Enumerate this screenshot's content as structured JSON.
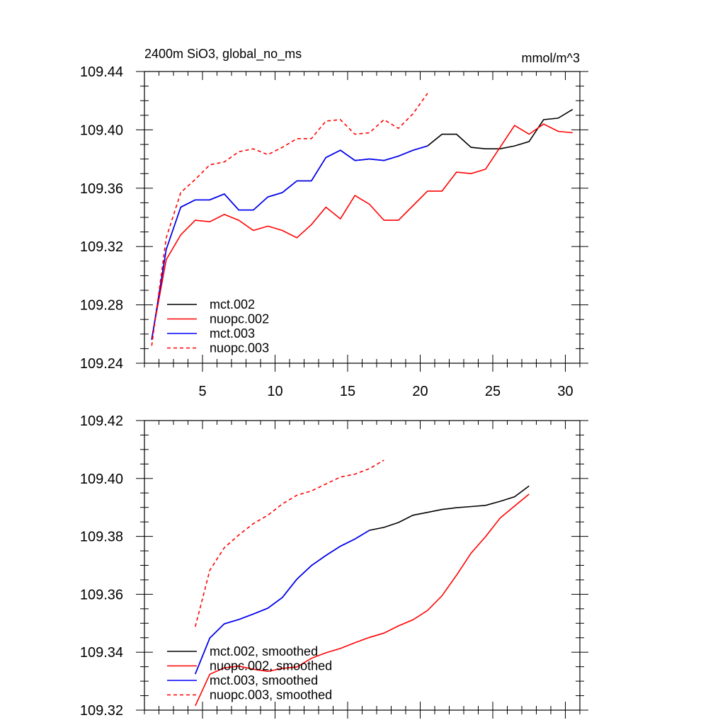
{
  "chart_data": [
    {
      "type": "line",
      "title": "2400m SiO3, global_no_ms",
      "units": "mmol/m^3",
      "xlabel": "",
      "ylabel": "",
      "xlim": [
        1,
        31
      ],
      "ylim": [
        109.24,
        109.44
      ],
      "xticks": [
        5,
        10,
        15,
        20,
        25,
        30
      ],
      "yticks": [
        "109.24",
        "109.28",
        "109.32",
        "109.36",
        "109.40",
        "109.44"
      ],
      "legend_position": "bottom-left",
      "series": [
        {
          "name": "mct.002",
          "color": "#000000",
          "dash": "solid",
          "x": [
            1.5,
            2.5,
            3.5,
            4.5,
            5.5,
            6.5,
            7.5,
            8.5,
            9.5,
            10.5,
            11.5,
            12.5,
            13.5,
            14.5,
            15.5,
            16.5,
            17.5,
            18.5,
            19.5,
            20.5,
            21.5,
            22.5,
            23.5,
            24.5,
            25.5,
            26.5,
            27.5,
            28.5,
            29.5,
            30.5
          ],
          "y": [
            109.256,
            109.318,
            109.347,
            109.352,
            109.352,
            109.356,
            109.345,
            109.345,
            109.354,
            109.357,
            109.365,
            109.365,
            109.381,
            109.386,
            109.379,
            109.38,
            109.379,
            109.382,
            109.386,
            109.389,
            109.397,
            109.397,
            109.388,
            109.387,
            109.387,
            109.389,
            109.392,
            109.407,
            109.408,
            109.414
          ]
        },
        {
          "name": "nuopc.002",
          "color": "#ff0000",
          "dash": "solid",
          "x": [
            1.5,
            2.5,
            3.5,
            4.5,
            5.5,
            6.5,
            7.5,
            8.5,
            9.5,
            10.5,
            11.5,
            12.5,
            13.5,
            14.5,
            15.5,
            16.5,
            17.5,
            18.5,
            19.5,
            20.5,
            21.5,
            22.5,
            23.5,
            24.5,
            25.5,
            26.5,
            27.5,
            28.5,
            29.5,
            30.5
          ],
          "y": [
            109.257,
            109.311,
            109.328,
            109.338,
            109.337,
            109.342,
            109.338,
            109.331,
            109.334,
            109.331,
            109.326,
            109.335,
            109.347,
            109.339,
            109.355,
            109.349,
            109.338,
            109.338,
            109.348,
            109.358,
            109.358,
            109.371,
            109.37,
            109.373,
            109.388,
            109.403,
            109.397,
            109.404,
            109.399,
            109.398
          ]
        },
        {
          "name": "mct.003",
          "color": "#0000ff",
          "dash": "solid",
          "x": [
            1.5,
            2.5,
            3.5,
            4.5,
            5.5,
            6.5,
            7.5,
            8.5,
            9.5,
            10.5,
            11.5,
            12.5,
            13.5,
            14.5,
            15.5,
            16.5,
            17.5,
            18.5,
            19.5,
            20.5
          ],
          "y": [
            109.256,
            109.318,
            109.347,
            109.352,
            109.352,
            109.356,
            109.345,
            109.345,
            109.354,
            109.357,
            109.365,
            109.365,
            109.381,
            109.386,
            109.379,
            109.38,
            109.379,
            109.382,
            109.386,
            109.389
          ]
        },
        {
          "name": "nuopc.003",
          "color": "#ff0000",
          "dash": "dashed",
          "x": [
            1.5,
            2.5,
            3.5,
            4.5,
            5.5,
            6.5,
            7.5,
            8.5,
            9.5,
            10.5,
            11.5,
            12.5,
            13.5,
            14.5,
            15.5,
            16.5,
            17.5,
            18.5,
            19.5,
            20.5
          ],
          "y": [
            109.252,
            109.326,
            109.357,
            109.366,
            109.376,
            109.378,
            109.385,
            109.387,
            109.383,
            109.388,
            109.394,
            109.394,
            109.406,
            109.407,
            109.397,
            109.398,
            109.407,
            109.401,
            109.411,
            109.425
          ]
        }
      ]
    },
    {
      "type": "line",
      "title": "",
      "xlabel": "",
      "ylabel": "",
      "xlim": [
        1,
        31
      ],
      "ylim": [
        109.32,
        109.42
      ],
      "xticks": [
        5,
        10,
        15,
        20,
        25,
        30
      ],
      "yticks": [
        "109.32",
        "109.34",
        "109.36",
        "109.38",
        "109.40",
        "109.42"
      ],
      "legend_position": "bottom-left",
      "series": [
        {
          "name": "mct.002, smoothed",
          "color": "#000000",
          "dash": "solid",
          "x": [
            4.5,
            5.5,
            6.5,
            7.5,
            8.5,
            9.5,
            10.5,
            11.5,
            12.5,
            13.5,
            14.5,
            15.5,
            16.5,
            17.5,
            18.5,
            19.5,
            20.5,
            21.5,
            22.5,
            23.5,
            24.5,
            25.5,
            26.5,
            27.5
          ],
          "y": [
            109.3325,
            109.3449,
            109.3498,
            109.3513,
            109.3532,
            109.3552,
            109.3589,
            109.3652,
            109.3699,
            109.3734,
            109.3766,
            109.3791,
            109.3821,
            109.3831,
            109.3848,
            109.3873,
            109.3883,
            109.3893,
            109.3899,
            109.3903,
            109.3907,
            109.3921,
            109.3937,
            109.3974
          ]
        },
        {
          "name": "nuopc.002, smoothed",
          "color": "#ff0000",
          "dash": "solid",
          "x": [
            4.5,
            5.5,
            6.5,
            7.5,
            8.5,
            9.5,
            10.5,
            11.5,
            12.5,
            13.5,
            14.5,
            15.5,
            16.5,
            17.5,
            18.5,
            19.5,
            20.5,
            21.5,
            22.5,
            23.5,
            24.5,
            25.5,
            26.5,
            27.5
          ],
          "y": [
            109.3215,
            109.3324,
            109.3346,
            109.3352,
            109.3341,
            109.3334,
            109.3344,
            109.3349,
            109.3379,
            109.3398,
            109.3413,
            109.3433,
            109.3451,
            109.3466,
            109.3491,
            109.3512,
            109.3544,
            109.3595,
            109.3666,
            109.3742,
            109.3799,
            109.3863,
            109.3905,
            109.3946
          ]
        },
        {
          "name": "mct.003, smoothed",
          "color": "#0000ff",
          "dash": "solid",
          "x": [
            4.5,
            5.5,
            6.5,
            7.5,
            8.5,
            9.5,
            10.5,
            11.5,
            12.5,
            13.5,
            14.5,
            15.5,
            16.5
          ],
          "y": [
            109.3325,
            109.3449,
            109.3498,
            109.3513,
            109.3532,
            109.3552,
            109.3589,
            109.3652,
            109.3699,
            109.3734,
            109.3766,
            109.3791,
            109.3821
          ]
        },
        {
          "name": "nuopc.003, smoothed",
          "color": "#ff0000",
          "dash": "dashed",
          "x": [
            4.5,
            5.5,
            6.5,
            7.5,
            8.5,
            9.5,
            10.5,
            11.5,
            12.5,
            13.5,
            14.5,
            15.5,
            16.5,
            17.5
          ],
          "y": [
            109.3488,
            109.3683,
            109.3761,
            109.3805,
            109.3844,
            109.3873,
            109.3912,
            109.3942,
            109.3957,
            109.3981,
            109.4005,
            109.4015,
            109.4034,
            109.4063
          ]
        }
      ]
    }
  ]
}
